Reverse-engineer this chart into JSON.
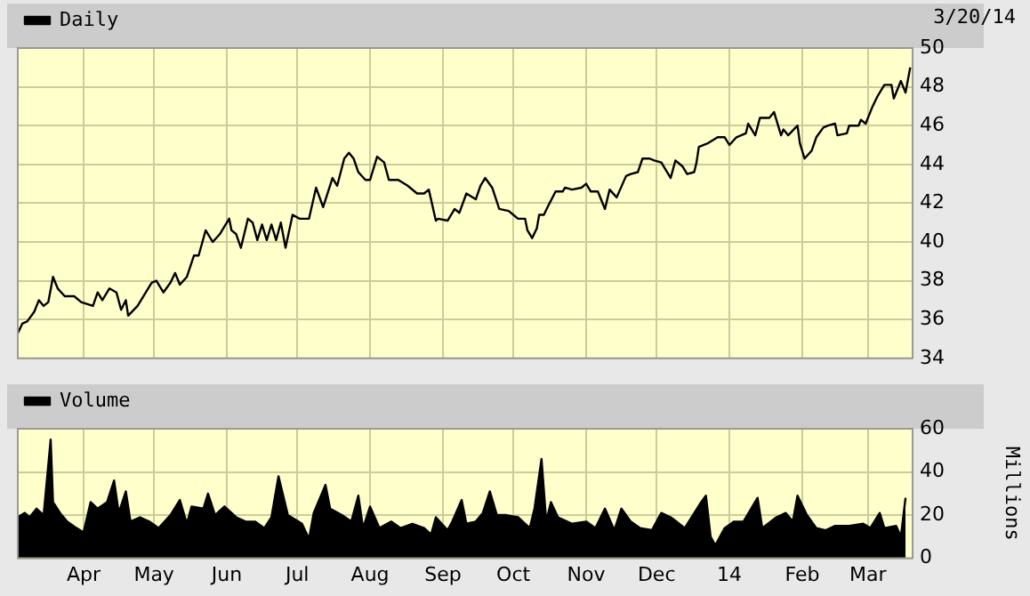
{
  "chart_data": [
    {
      "type": "line",
      "legend": "top left",
      "grid": true,
      "tick_labels": "y",
      "annotations": [
        "3/20/14"
      ],
      "xlim": [
        "2013-03-04",
        "2014-03-20"
      ],
      "xticks": [
        {
          "value": "2013-04-01",
          "label": null
        },
        {
          "value": "2013-05-01",
          "label": null
        },
        {
          "value": "2013-06-01",
          "label": null
        },
        {
          "value": "2013-07-01",
          "label": null
        },
        {
          "value": "2013-08-01",
          "label": null
        },
        {
          "value": "2013-09-01",
          "label": null
        },
        {
          "value": "2013-10-01",
          "label": null
        },
        {
          "value": "2013-11-01",
          "label": null
        },
        {
          "value": "2013-12-01",
          "label": null
        },
        {
          "value": "2014-01-01",
          "label": null
        },
        {
          "value": "2014-02-01",
          "label": null
        },
        {
          "value": "2014-03-01",
          "label": null
        }
      ],
      "ylim": [
        34,
        50
      ],
      "yticks": [
        34,
        36,
        38,
        40,
        42,
        44,
        46,
        48,
        50
      ],
      "x": [
        "2013-03-04",
        "2013-03-06",
        "2013-03-08",
        "2013-03-11",
        "2013-03-13",
        "2013-03-15",
        "2013-03-17",
        "2013-03-19",
        "2013-03-21",
        "2013-03-24",
        "2013-03-28",
        "2013-03-31",
        "2013-04-05",
        "2013-04-07",
        "2013-04-09",
        "2013-04-12",
        "2013-04-15",
        "2013-04-17",
        "2013-04-19",
        "2013-04-20",
        "2013-04-24",
        "2013-04-30",
        "2013-05-02",
        "2013-05-05",
        "2013-05-08",
        "2013-05-10",
        "2013-05-12",
        "2013-05-15",
        "2013-05-18",
        "2013-05-20",
        "2013-05-23",
        "2013-05-26",
        "2013-05-29",
        "2013-06-02",
        "2013-06-03",
        "2013-06-05",
        "2013-06-07",
        "2013-06-10",
        "2013-06-12",
        "2013-06-14",
        "2013-06-16",
        "2013-06-18",
        "2013-06-20",
        "2013-06-22",
        "2013-06-24",
        "2013-06-26",
        "2013-06-29",
        "2013-07-02",
        "2013-07-06",
        "2013-07-09",
        "2013-07-12",
        "2013-07-16",
        "2013-07-18",
        "2013-07-21",
        "2013-07-23",
        "2013-07-25",
        "2013-07-27",
        "2013-07-30",
        "2013-08-01",
        "2013-08-04",
        "2013-08-07",
        "2013-08-09",
        "2013-08-13",
        "2013-08-17",
        "2013-08-21",
        "2013-08-24",
        "2013-08-26",
        "2013-08-29",
        "2013-08-30",
        "2013-09-03",
        "2013-09-06",
        "2013-09-08",
        "2013-09-11",
        "2013-09-15",
        "2013-09-17",
        "2013-09-19",
        "2013-09-22",
        "2013-09-25",
        "2013-09-29",
        "2013-10-01",
        "2013-10-03",
        "2013-10-06",
        "2013-10-07",
        "2013-10-09",
        "2013-10-11",
        "2013-10-12",
        "2013-10-14",
        "2013-10-16",
        "2013-10-19",
        "2013-10-22",
        "2013-10-23",
        "2013-10-26",
        "2013-10-30",
        "2013-11-01",
        "2013-11-03",
        "2013-11-06",
        "2013-11-09",
        "2013-11-11",
        "2013-11-14",
        "2013-11-18",
        "2013-11-20",
        "2013-11-23",
        "2013-11-25",
        "2013-11-28",
        "2013-11-30",
        "2013-12-03",
        "2013-12-07",
        "2013-12-09",
        "2013-12-12",
        "2013-12-14",
        "2013-12-17",
        "2013-12-18",
        "2013-12-19",
        "2013-12-23",
        "2013-12-27",
        "2013-12-30",
        "2014-01-01",
        "2014-01-04",
        "2014-01-08",
        "2014-01-09",
        "2014-01-12",
        "2014-01-14",
        "2014-01-18",
        "2014-01-20",
        "2014-01-23",
        "2014-01-24",
        "2014-01-26",
        "2014-01-30",
        "2014-01-31",
        "2014-02-02",
        "2014-02-05",
        "2014-02-07",
        "2014-02-10",
        "2014-02-12",
        "2014-02-15",
        "2014-02-16",
        "2014-02-20",
        "2014-02-21",
        "2014-02-25",
        "2014-02-26",
        "2014-02-28",
        "2014-03-03",
        "2014-03-05",
        "2014-03-08",
        "2014-03-11",
        "2014-03-12",
        "2014-03-15",
        "2014-03-17",
        "2014-03-19"
      ],
      "series": [
        {
          "name": "Daily",
          "color": "#000000",
          "values": [
            35.3,
            35.8,
            35.9,
            36.4,
            37.0,
            36.7,
            36.9,
            38.2,
            37.6,
            37.2,
            37.2,
            36.9,
            36.7,
            37.4,
            37.0,
            37.6,
            37.4,
            36.5,
            37.0,
            36.2,
            36.7,
            37.9,
            38.0,
            37.4,
            37.9,
            38.4,
            37.8,
            38.2,
            39.3,
            39.3,
            40.6,
            40.0,
            40.4,
            41.2,
            40.6,
            40.4,
            39.7,
            41.2,
            41.0,
            40.1,
            40.9,
            40.1,
            40.9,
            40.1,
            41.0,
            39.7,
            41.4,
            41.2,
            41.2,
            42.8,
            41.8,
            43.3,
            42.9,
            44.3,
            44.6,
            44.3,
            43.6,
            43.2,
            43.2,
            44.4,
            44.1,
            43.2,
            43.2,
            42.9,
            42.5,
            42.5,
            42.7,
            41.1,
            41.2,
            41.1,
            41.7,
            41.5,
            42.5,
            42.2,
            42.9,
            43.3,
            42.8,
            41.7,
            41.6,
            41.4,
            41.2,
            41.2,
            40.6,
            40.2,
            40.7,
            41.4,
            41.4,
            41.9,
            42.6,
            42.6,
            42.8,
            42.7,
            42.8,
            43.0,
            42.6,
            42.6,
            41.7,
            42.7,
            42.3,
            43.4,
            43.5,
            43.6,
            44.3,
            44.3,
            44.2,
            44.1,
            43.3,
            44.2,
            43.9,
            43.5,
            43.6,
            44.1,
            44.9,
            45.1,
            45.4,
            45.4,
            45.0,
            45.4,
            45.6,
            46.1,
            45.5,
            46.4,
            46.4,
            46.7,
            45.5,
            45.8,
            45.5,
            46.0,
            45.1,
            44.3,
            44.7,
            45.4,
            45.9,
            46.0,
            46.1,
            45.5,
            45.6,
            46.0,
            46.0,
            46.3,
            46.1,
            47.0,
            47.5,
            48.1,
            48.1,
            47.4,
            48.3,
            47.7,
            49.0
          ]
        }
      ]
    },
    {
      "type": "area",
      "legend": "top left",
      "grid": true,
      "ylabel": "Millions",
      "xlim": [
        "2013-03-04",
        "2014-03-20"
      ],
      "xticks": [
        {
          "value": "2013-04-01",
          "label": "Apr"
        },
        {
          "value": "2013-05-01",
          "label": "May"
        },
        {
          "value": "2013-06-01",
          "label": "Jun"
        },
        {
          "value": "2013-07-01",
          "label": "Jul"
        },
        {
          "value": "2013-08-01",
          "label": "Aug"
        },
        {
          "value": "2013-09-01",
          "label": "Sep"
        },
        {
          "value": "2013-10-01",
          "label": "Oct"
        },
        {
          "value": "2013-11-01",
          "label": "Nov"
        },
        {
          "value": "2013-12-01",
          "label": "Dec"
        },
        {
          "value": "2014-01-01",
          "label": "14"
        },
        {
          "value": "2014-02-01",
          "label": "Feb"
        },
        {
          "value": "2014-03-01",
          "label": "Mar"
        }
      ],
      "ylim": [
        0,
        60
      ],
      "yticks": [
        0,
        20,
        40,
        60
      ],
      "x": [
        "2013-03-04",
        "2013-03-07",
        "2013-03-09",
        "2013-03-12",
        "2013-03-15",
        "2013-03-18",
        "2013-03-19",
        "2013-03-22",
        "2013-03-25",
        "2013-03-29",
        "2013-04-01",
        "2013-04-04",
        "2013-04-07",
        "2013-04-11",
        "2013-04-14",
        "2013-04-16",
        "2013-04-19",
        "2013-04-21",
        "2013-04-25",
        "2013-04-29",
        "2013-05-03",
        "2013-05-08",
        "2013-05-12",
        "2013-05-15",
        "2013-05-17",
        "2013-05-22",
        "2013-05-24",
        "2013-05-27",
        "2013-05-31",
        "2013-06-05",
        "2013-06-09",
        "2013-06-13",
        "2013-06-17",
        "2013-06-20",
        "2013-06-23",
        "2013-06-27",
        "2013-07-03",
        "2013-07-06",
        "2013-07-08",
        "2013-07-13",
        "2013-07-15",
        "2013-07-20",
        "2013-07-24",
        "2013-07-27",
        "2013-07-29",
        "2013-08-01",
        "2013-08-05",
        "2013-08-10",
        "2013-08-14",
        "2013-08-19",
        "2013-08-24",
        "2013-08-27",
        "2013-08-29",
        "2013-09-03",
        "2013-09-05",
        "2013-09-09",
        "2013-09-11",
        "2013-09-15",
        "2013-09-18",
        "2013-09-21",
        "2013-09-24",
        "2013-09-28",
        "2013-10-03",
        "2013-10-08",
        "2013-10-10",
        "2013-10-13",
        "2013-10-15",
        "2013-10-17",
        "2013-10-20",
        "2013-10-26",
        "2013-11-01",
        "2013-11-05",
        "2013-11-09",
        "2013-11-13",
        "2013-11-16",
        "2013-11-20",
        "2013-11-24",
        "2013-11-29",
        "2013-12-03",
        "2013-12-07",
        "2013-12-13",
        "2013-12-20",
        "2013-12-22",
        "2013-12-24",
        "2013-12-26",
        "2013-12-30",
        "2014-01-03",
        "2014-01-07",
        "2014-01-13",
        "2014-01-15",
        "2014-01-21",
        "2014-01-25",
        "2014-01-28",
        "2014-01-30",
        "2014-02-03",
        "2014-02-07",
        "2014-02-11",
        "2014-02-15",
        "2014-02-21",
        "2014-02-27",
        "2014-03-02",
        "2014-03-06",
        "2014-03-08",
        "2014-03-13",
        "2014-03-15",
        "2014-03-17"
      ],
      "series": [
        {
          "name": "Volume",
          "color": "#000000",
          "values": [
            19,
            21,
            19,
            23,
            20,
            55,
            26,
            21,
            17,
            14,
            12,
            26,
            23,
            26,
            36,
            21,
            31,
            17,
            19,
            17,
            14,
            20,
            27,
            16,
            24,
            23,
            30,
            20,
            24,
            19,
            17,
            17,
            14,
            19,
            38,
            20,
            16,
            9,
            21,
            34,
            23,
            20,
            17,
            29,
            14,
            24,
            14,
            17,
            14,
            16,
            14,
            11,
            19,
            13,
            17,
            27,
            16,
            17,
            21,
            31,
            20,
            20,
            19,
            14,
            23,
            46,
            17,
            26,
            19,
            16,
            17,
            14,
            23,
            13,
            23,
            17,
            14,
            13,
            21,
            19,
            14,
            26,
            29,
            10,
            6,
            14,
            17,
            17,
            28,
            14,
            19,
            21,
            17,
            29,
            20,
            14,
            13,
            15,
            15,
            16,
            14,
            21,
            14,
            15,
            10,
            28
          ]
        }
      ]
    }
  ]
}
